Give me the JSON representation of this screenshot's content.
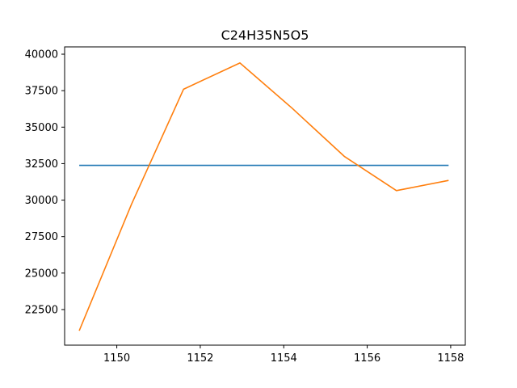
{
  "chart_data": {
    "type": "line",
    "title": "C24H35N5O5",
    "xlabel": "",
    "ylabel": "",
    "xlim": [
      1148.75,
      1158.35
    ],
    "ylim": [
      20060,
      40500
    ],
    "x_ticks": [
      1150,
      1152,
      1154,
      1156,
      1158
    ],
    "x_tick_labels": [
      "1150",
      "1152",
      "1154",
      "1156",
      "1158"
    ],
    "y_ticks": [
      22500,
      25000,
      27500,
      30000,
      32500,
      35000,
      37500,
      40000
    ],
    "y_tick_labels": [
      "22500",
      "25000",
      "27500",
      "30000",
      "32500",
      "35000",
      "37500",
      "40000"
    ],
    "grid": false,
    "series": [
      {
        "color": "#1f77b4",
        "x": [
          1149.1,
          1157.95
        ],
        "y": [
          32380,
          32380
        ]
      },
      {
        "color": "#ff7f0e",
        "x": [
          1149.1,
          1150.35,
          1151.6,
          1152.95,
          1154.2,
          1155.45,
          1156.7,
          1157.95
        ],
        "y": [
          21050,
          29700,
          37600,
          39400,
          36300,
          33000,
          30650,
          31350
        ]
      }
    ]
  }
}
